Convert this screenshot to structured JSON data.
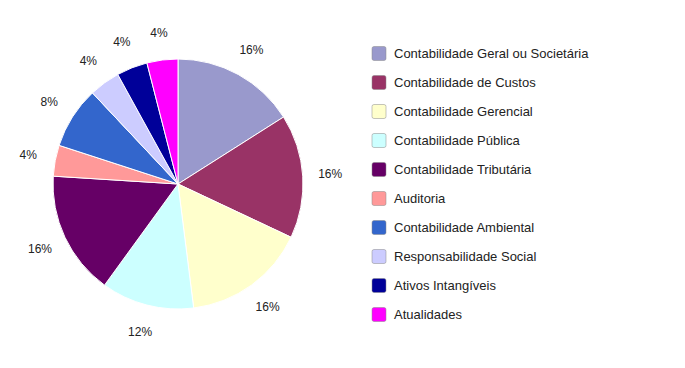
{
  "chart_data": {
    "type": "pie",
    "categories": [
      "Contabilidade Geral ou Societária",
      "Contabilidade de Custos",
      "Contabilidade Gerencial",
      "Contabilidade Pública",
      "Contabilidade Tributária",
      "Auditoria",
      "Contabilidade Ambiental",
      "Responsabilidade Social",
      "Ativos Intangíveis",
      "Atualidades"
    ],
    "values": [
      16,
      16,
      16,
      12,
      16,
      4,
      8,
      4,
      4,
      4
    ],
    "value_labels": [
      "16%",
      "16%",
      "16%",
      "12%",
      "16%",
      "4%",
      "8%",
      "4%",
      "4%",
      "4%"
    ],
    "colors": [
      "#9999CC",
      "#993366",
      "#FFFFCC",
      "#CCFFFF",
      "#660066",
      "#FF9999",
      "#3366CC",
      "#CCCCFF",
      "#000099",
      "#FF00FF"
    ],
    "data_labels": true,
    "legend": "right"
  }
}
